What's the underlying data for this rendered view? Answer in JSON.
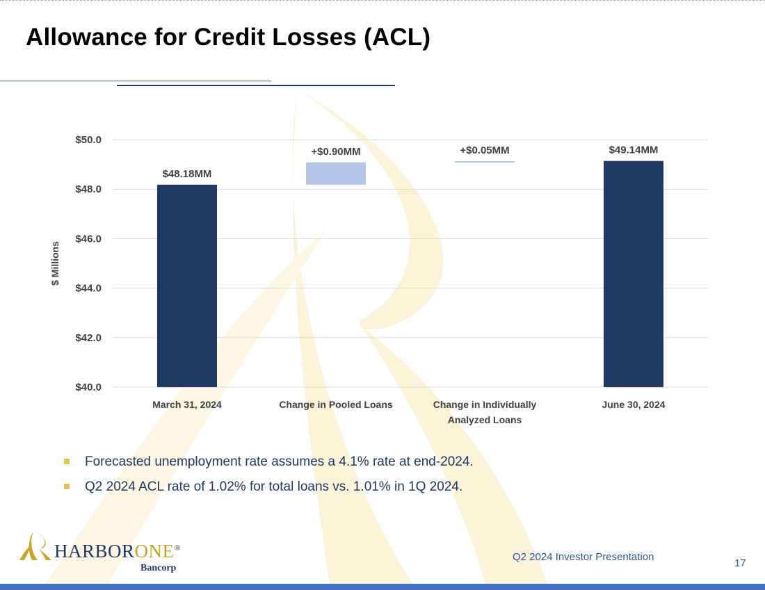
{
  "slide": {
    "title": "Allowance for Credit Losses (ACL)",
    "bullets": [
      "Forecasted unemployment rate assumes a 4.1% rate at end-2024.",
      "Q2 2024 ACL rate of 1.02% for total loans vs. 1.01% in 1Q 2024."
    ],
    "footer": "Q2 2024 Investor Presentation",
    "page_number": "17",
    "logo": {
      "wordmark_a": "HARBOR",
      "wordmark_b": "ONE",
      "reg": "®",
      "sub": "Bancorp"
    }
  },
  "colors": {
    "dark_bar": "#1f3864",
    "light_bar": "#b4c7e7",
    "gridline": "#d9d9d9",
    "bullet": "#e8c046",
    "accent": "#4472c4"
  },
  "chart_data": {
    "type": "bar",
    "subtype": "waterfall",
    "ylabel": "$ Millions",
    "ylim": [
      40,
      50
    ],
    "yticks": [
      40,
      42,
      44,
      46,
      48,
      50
    ],
    "ytick_labels": [
      "$40.0",
      "$42.0",
      "$44.0",
      "$46.0",
      "$48.0",
      "$50.0"
    ],
    "grid": true,
    "categories": [
      [
        "March 31, 2024"
      ],
      [
        "Change in Pooled Loans"
      ],
      [
        "Change in Individually",
        "Analyzed Loans"
      ],
      [
        "June 30, 2024"
      ]
    ],
    "bars": [
      {
        "kind": "total",
        "base": 40,
        "top": 48.18,
        "label": "$48.18MM"
      },
      {
        "kind": "delta",
        "base": 48.18,
        "top": 49.08,
        "label": "+$0.90MM"
      },
      {
        "kind": "delta",
        "base": 49.08,
        "top": 49.13,
        "label": "+$0.05MM"
      },
      {
        "kind": "total",
        "base": 40,
        "top": 49.14,
        "label": "$49.14MM"
      }
    ]
  }
}
